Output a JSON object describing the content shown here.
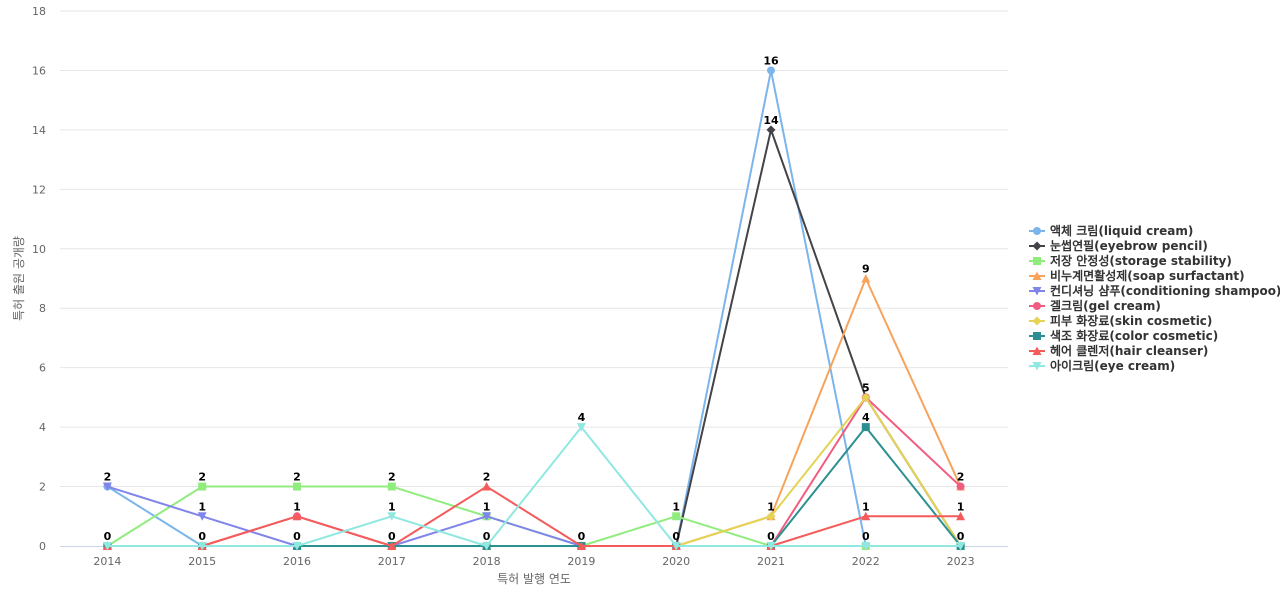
{
  "chart_data": {
    "type": "line",
    "title": "",
    "xlabel": "특허 발행 연도",
    "ylabel": "특허 출원 공개량",
    "x": [
      "2014",
      "2015",
      "2016",
      "2017",
      "2018",
      "2019",
      "2020",
      "2021",
      "2022",
      "2023"
    ],
    "ylim": [
      0,
      18
    ],
    "yticks": [
      0,
      2,
      4,
      6,
      8,
      10,
      12,
      14,
      16,
      18
    ],
    "grid": true,
    "legend_position": "right",
    "series": [
      {
        "name": "액체 크림(liquid cream)",
        "color": "#7cb5ec",
        "marker": "circle",
        "values": [
          2,
          0,
          0,
          0,
          0,
          0,
          0,
          16,
          0,
          0
        ]
      },
      {
        "name": "눈썹연필(eyebrow pencil)",
        "color": "#434348",
        "marker": "diamond",
        "values": [
          0,
          0,
          0,
          0,
          0,
          0,
          0,
          14,
          5,
          0
        ]
      },
      {
        "name": "저장 안정성(storage stability)",
        "color": "#90ed7d",
        "marker": "square",
        "values": [
          0,
          2,
          2,
          2,
          1,
          0,
          1,
          0,
          0,
          0
        ]
      },
      {
        "name": "비누계면활성제(soap surfactant)",
        "color": "#f7a35c",
        "marker": "triangle",
        "values": [
          0,
          0,
          0,
          0,
          0,
          0,
          0,
          1,
          9,
          2
        ]
      },
      {
        "name": "컨디셔닝 샴푸(conditioning shampoo)",
        "color": "#8085e9",
        "marker": "triangle-down",
        "values": [
          2,
          1,
          0,
          0,
          1,
          0,
          0,
          0,
          0,
          0
        ]
      },
      {
        "name": "겔크림(gel cream)",
        "color": "#f15c80",
        "marker": "circle",
        "values": [
          0,
          0,
          1,
          0,
          0,
          0,
          0,
          0,
          5,
          2
        ]
      },
      {
        "name": "피부 화장료(skin cosmetic)",
        "color": "#e4d354",
        "marker": "diamond",
        "values": [
          0,
          0,
          0,
          0,
          0,
          0,
          0,
          1,
          5,
          0
        ]
      },
      {
        "name": "색조 화장료(color cosmetic)",
        "color": "#2b908f",
        "marker": "square",
        "values": [
          0,
          0,
          0,
          0,
          0,
          0,
          0,
          0,
          4,
          0
        ]
      },
      {
        "name": "헤어 클렌저(hair cleanser)",
        "color": "#f45b5b",
        "marker": "triangle",
        "values": [
          0,
          0,
          1,
          0,
          2,
          0,
          0,
          0,
          1,
          1
        ]
      },
      {
        "name": "아이크림(eye cream)",
        "color": "#91e8e1",
        "marker": "triangle-down",
        "values": [
          0,
          0,
          0,
          1,
          0,
          4,
          0,
          0,
          0,
          0
        ]
      }
    ],
    "data_labels": [
      {
        "x": "2014",
        "text": "2",
        "y": 2
      },
      {
        "x": "2014",
        "text": "0",
        "y": 0
      },
      {
        "x": "2015",
        "text": "2",
        "y": 2
      },
      {
        "x": "2015",
        "text": "1",
        "y": 1
      },
      {
        "x": "2015",
        "text": "0",
        "y": 0
      },
      {
        "x": "2016",
        "text": "2",
        "y": 2
      },
      {
        "x": "2016",
        "text": "1",
        "y": 1
      },
      {
        "x": "2016",
        "text": "0",
        "y": 0
      },
      {
        "x": "2017",
        "text": "2",
        "y": 2
      },
      {
        "x": "2017",
        "text": "1",
        "y": 1
      },
      {
        "x": "2017",
        "text": "0",
        "y": 0
      },
      {
        "x": "2018",
        "text": "2",
        "y": 2
      },
      {
        "x": "2018",
        "text": "1",
        "y": 1
      },
      {
        "x": "2018",
        "text": "0",
        "y": 0
      },
      {
        "x": "2019",
        "text": "4",
        "y": 4
      },
      {
        "x": "2019",
        "text": "0",
        "y": 0
      },
      {
        "x": "2020",
        "text": "1",
        "y": 1
      },
      {
        "x": "2020",
        "text": "0",
        "y": 0
      },
      {
        "x": "2021",
        "text": "16",
        "y": 16
      },
      {
        "x": "2021",
        "text": "14",
        "y": 14
      },
      {
        "x": "2021",
        "text": "1",
        "y": 1
      },
      {
        "x": "2021",
        "text": "0",
        "y": 0
      },
      {
        "x": "2022",
        "text": "9",
        "y": 9
      },
      {
        "x": "2022",
        "text": "5",
        "y": 5
      },
      {
        "x": "2022",
        "text": "4",
        "y": 4
      },
      {
        "x": "2022",
        "text": "1",
        "y": 1
      },
      {
        "x": "2022",
        "text": "0",
        "y": 0
      },
      {
        "x": "2023",
        "text": "2",
        "y": 2
      },
      {
        "x": "2023",
        "text": "1",
        "y": 1
      },
      {
        "x": "2023",
        "text": "0",
        "y": 0
      }
    ]
  }
}
